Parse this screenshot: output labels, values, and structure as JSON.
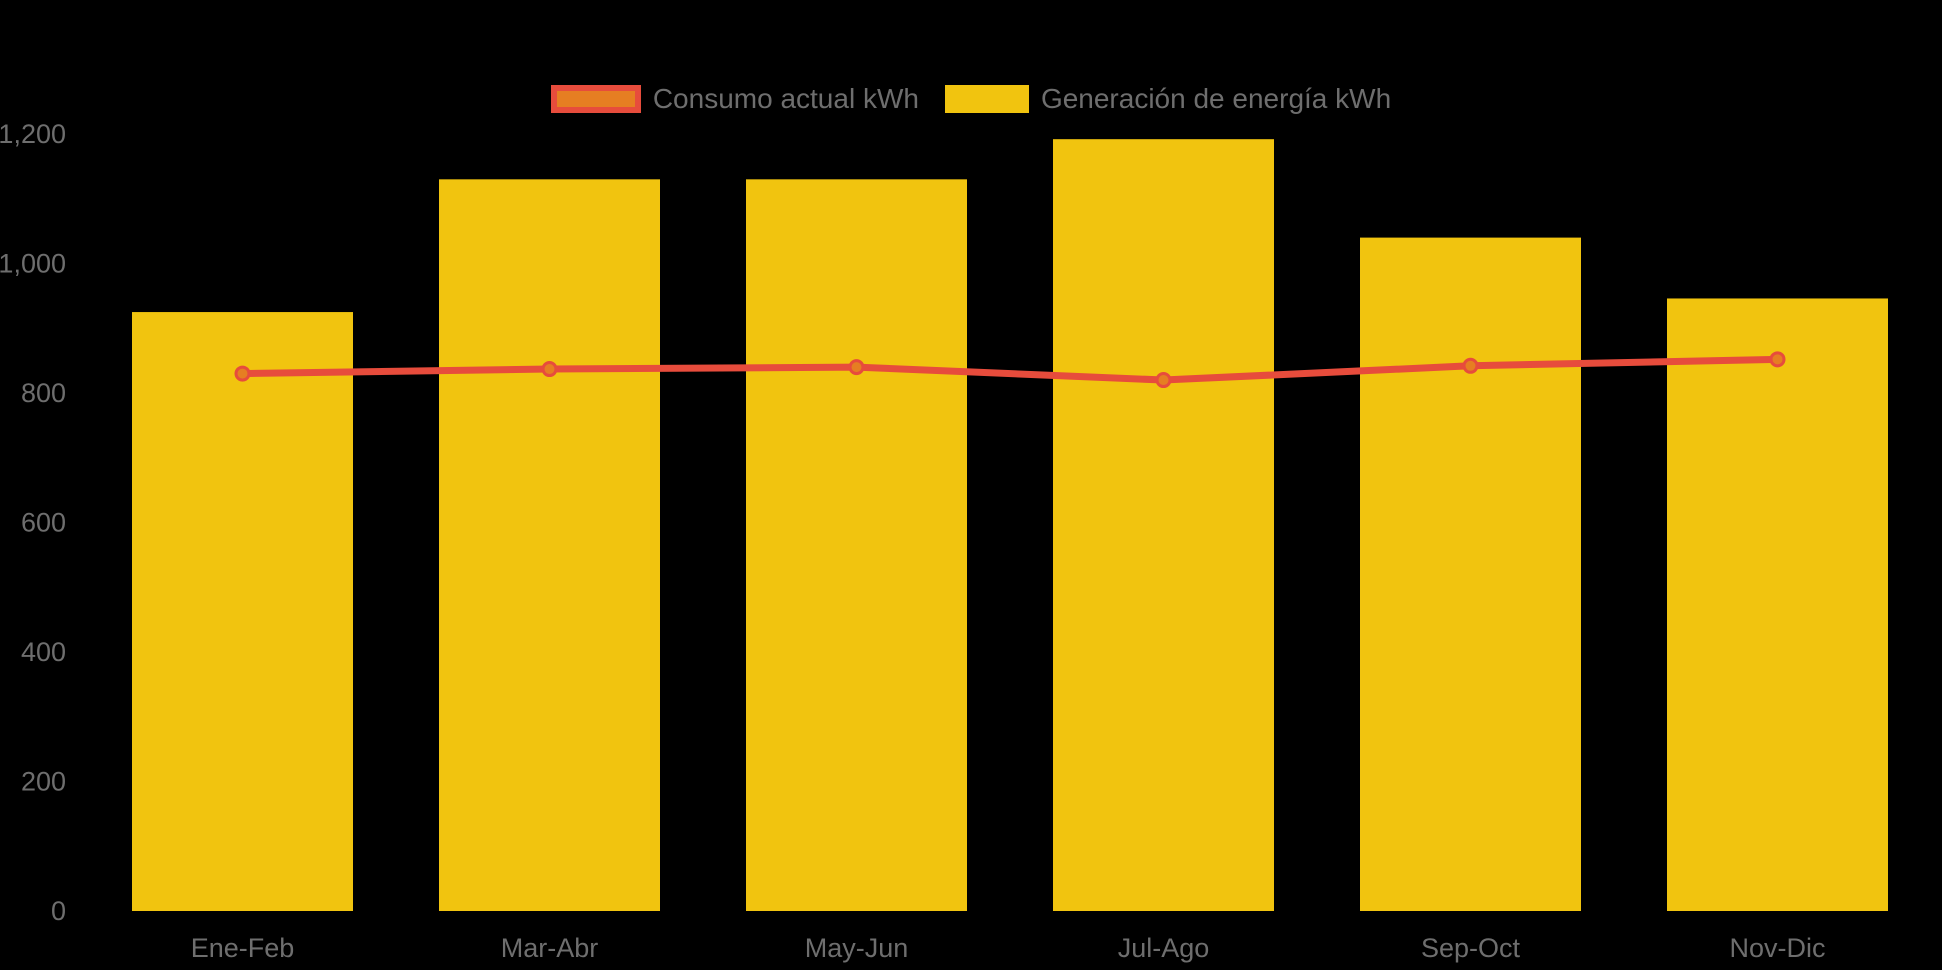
{
  "colors": {
    "background": "#000000",
    "bar_fill": "#F1C40F",
    "line_stroke": "#E74C3C",
    "marker_fill": "#E67E22",
    "axis_text": "#6E6E6E"
  },
  "legend": {
    "consumo_label": "Consumo actual kWh",
    "generacion_label": "Generación de energía kWh"
  },
  "chart_data": {
    "type": "bar",
    "title": "",
    "xlabel": "",
    "ylabel": "",
    "categories": [
      "Ene-Feb",
      "Mar-Abr",
      "May-Jun",
      "Jul-Ago",
      "Sep-Oct",
      "Nov-Dic"
    ],
    "series": [
      {
        "name": "Generación de energía kWh",
        "type": "bar",
        "color": "#F1C40F",
        "values": [
          925,
          1130,
          1130,
          1192,
          1040,
          946
        ]
      },
      {
        "name": "Consumo actual kWh",
        "type": "line",
        "color": "#E74C3C",
        "marker_fill": "#E67E22",
        "values": [
          830,
          837,
          840,
          820,
          842,
          852
        ]
      }
    ],
    "ylim": [
      0,
      1300
    ],
    "yticks": [
      0,
      200,
      400,
      600,
      800,
      1000,
      1200
    ],
    "ytick_format": "thousands-comma",
    "grid": false,
    "legend_position": "top-center"
  }
}
